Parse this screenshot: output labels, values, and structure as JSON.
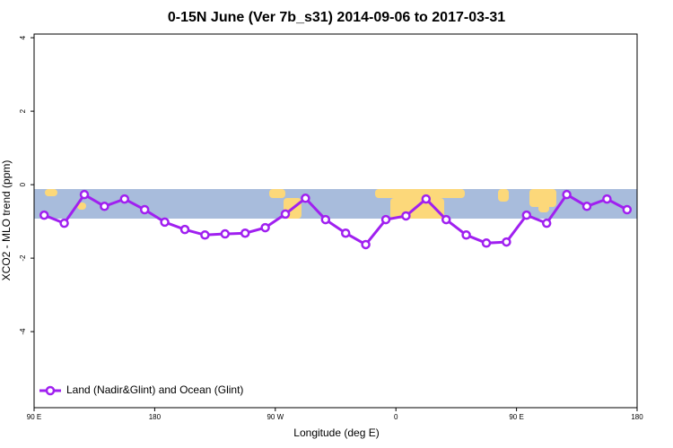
{
  "chart_data": {
    "type": "line",
    "title": "0-15N June (Ver 7b_s31)   2014-09-06 to 2017-03-31",
    "x_label": "Longitude (deg E)",
    "y_label": "XCO2 - MLO trend (ppm)",
    "x": [
      97.5,
      112.5,
      127.5,
      142.5,
      157.5,
      172.5,
      187.5,
      202.5,
      217.5,
      232.5,
      247.5,
      262.5,
      277.5,
      292.5,
      307.5,
      322.5,
      337.5,
      352.5,
      367.5,
      382.5,
      397.5,
      412.5,
      427.5,
      442.5,
      457.5,
      472.5,
      487.5,
      502.5,
      517.5,
      532.5
    ],
    "series": [
      {
        "name": "Land (Nadir&Glint) and Ocean (Glint)",
        "color": "#a020f0",
        "values": [
          -0.83,
          -1.05,
          -0.27,
          -0.59,
          -0.39,
          -0.68,
          -1.02,
          -1.22,
          -1.37,
          -1.34,
          -1.32,
          -1.17,
          -0.8,
          -0.37,
          -0.95,
          -1.32,
          -1.63,
          -0.95,
          -0.85,
          -0.39,
          -0.95,
          -1.37,
          -1.59,
          -1.56,
          -0.83,
          -1.05,
          -0.27,
          -0.59,
          -0.39,
          -0.68
        ]
      }
    ],
    "xlim": [
      90,
      540
    ],
    "xticks": [
      {
        "value": 90,
        "label": "90 E"
      },
      {
        "value": 180,
        "label": "180"
      },
      {
        "value": 270,
        "label": "90 W"
      },
      {
        "value": 360,
        "label": "0"
      },
      {
        "value": 450,
        "label": "90 E"
      },
      {
        "value": 540,
        "label": "180"
      }
    ],
    "ylim": [
      -6.07,
      4.1
    ],
    "yticks": [
      -4,
      -2,
      0,
      2,
      4
    ],
    "legend": "bottom-left"
  }
}
